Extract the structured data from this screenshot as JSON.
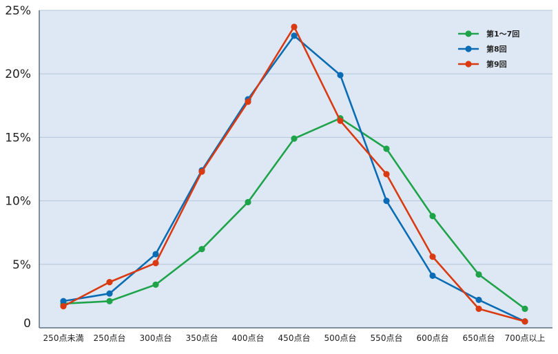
{
  "chart_data": {
    "type": "line",
    "title": "",
    "xlabel": "",
    "ylabel": "",
    "categories": [
      "250点未満",
      "250点台",
      "300点台",
      "350点台",
      "400点台",
      "450点台",
      "500点台",
      "550点台",
      "600点台",
      "650点台",
      "700点以上"
    ],
    "y_ticks": [
      "0",
      "5%",
      "10%",
      "15%",
      "20%",
      "25%"
    ],
    "ylim": [
      0,
      25
    ],
    "grid": true,
    "legend_position": "top-right",
    "colors": {
      "plot_background": "#dde8f4",
      "gridline": "#b4c6d8",
      "axis": "#5a6e82"
    },
    "series": [
      {
        "name": "第1～7回",
        "color": "#1ea34a",
        "values": [
          1.9,
          2.1,
          3.4,
          6.2,
          9.9,
          14.9,
          16.5,
          14.1,
          8.8,
          4.2,
          1.5
        ]
      },
      {
        "name": "第8回",
        "color": "#0a6cb4",
        "values": [
          2.1,
          2.7,
          5.8,
          12.4,
          18.0,
          23.0,
          19.9,
          10.0,
          4.1,
          2.2,
          0.5
        ]
      },
      {
        "name": "第9回",
        "color": "#d93a12",
        "values": [
          1.7,
          3.6,
          5.1,
          12.3,
          17.8,
          23.7,
          16.3,
          12.1,
          5.6,
          1.5,
          0.5
        ]
      }
    ]
  }
}
